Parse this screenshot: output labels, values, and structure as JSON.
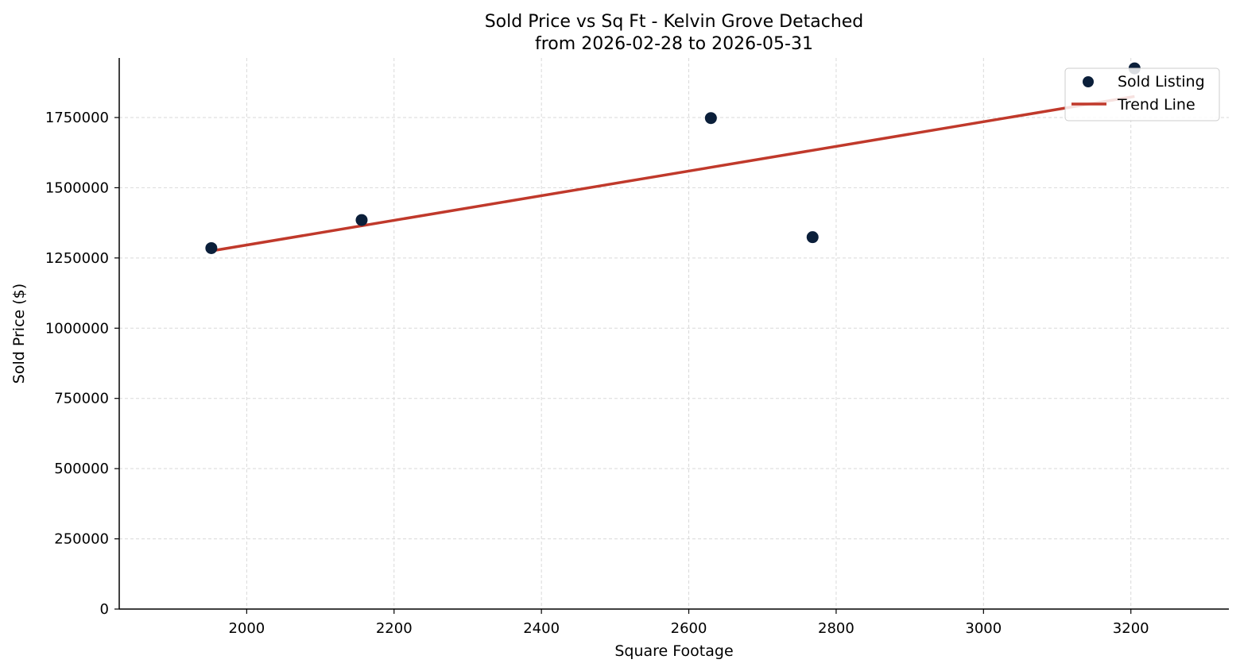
{
  "chart_data": {
    "type": "scatter",
    "title_line1": "Sold Price vs Sq Ft - Kelvin Grove Detached",
    "title_line2": "from 2026-02-28 to 2026-05-31",
    "xlabel": "Square Footage",
    "ylabel": "Sold Price ($)",
    "xlim": [
      1827,
      3333
    ],
    "ylim": [
      0,
      1962000
    ],
    "xticks": [
      2000,
      2200,
      2400,
      2600,
      2800,
      3000,
      3200
    ],
    "yticks": [
      0,
      250000,
      500000,
      750000,
      1000000,
      1250000,
      1500000,
      1750000
    ],
    "grid": true,
    "legend_position": "top-right",
    "series": [
      {
        "name": "Sold Listing",
        "kind": "scatter",
        "color": "#0b1f3a",
        "points": [
          {
            "x": 1952,
            "y": 1285000
          },
          {
            "x": 2156,
            "y": 1385000
          },
          {
            "x": 2630,
            "y": 1748000
          },
          {
            "x": 2768,
            "y": 1324000
          },
          {
            "x": 3205,
            "y": 1925000
          }
        ]
      },
      {
        "name": "Trend Line",
        "kind": "line",
        "color": "#c0392b",
        "points": [
          {
            "x": 1952,
            "y": 1275000
          },
          {
            "x": 3205,
            "y": 1825000
          }
        ]
      }
    ]
  }
}
